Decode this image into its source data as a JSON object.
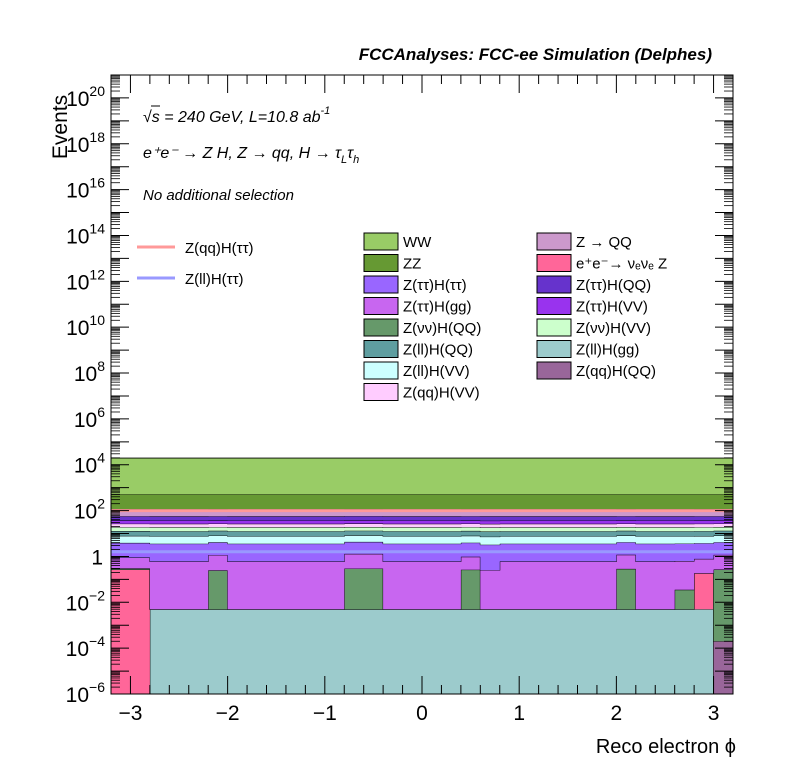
{
  "header": {
    "title": "FCCAnalyses: FCC-ee Simulation (Delphes)"
  },
  "annotations": {
    "energy_line": "√s = 240 GeV, L=10.8 ab",
    "energy_sup": "-1",
    "process_line": "e⁺e⁻ → Z H, Z → qq, H → τ_L τ_h",
    "process_main": "e⁺e⁻ → Z H, Z  → qq, H  → τ",
    "process_sub_L": "L",
    "process_tau2": "τ",
    "process_sub_h": "h",
    "selection": "No additional selection"
  },
  "chart_data": {
    "type": "area",
    "title": "FCCAnalyses: FCC-ee Simulation (Delphes)",
    "xlabel": "Reco electron ϕ",
    "ylabel": "Events",
    "xlim": [
      -3.2,
      3.2
    ],
    "ylim": [
      1e-06,
      1e+21
    ],
    "yscale": "log",
    "grid": false,
    "x_ticks": [
      "−3",
      "−2",
      "−1",
      "0",
      "1",
      "2",
      "3"
    ],
    "x_tick_values": [
      -3,
      -2,
      -1,
      0,
      1,
      2,
      3
    ],
    "y_ticks": [
      {
        "base": "10",
        "exp": "−6",
        "value": 1e-06
      },
      {
        "base": "10",
        "exp": "−4",
        "value": 0.0001
      },
      {
        "base": "10",
        "exp": "−2",
        "value": 0.01
      },
      {
        "base": "1",
        "exp": "",
        "value": 1
      },
      {
        "base": "10",
        "exp": "2",
        "value": 100.0
      },
      {
        "base": "10",
        "exp": "4",
        "value": 10000.0
      },
      {
        "base": "10",
        "exp": "6",
        "value": 1000000.0
      },
      {
        "base": "10",
        "exp": "8",
        "value": 100000000.0
      },
      {
        "base": "10",
        "exp": "10",
        "value": 10000000000.0
      },
      {
        "base": "10",
        "exp": "12",
        "value": 1000000000000.0
      },
      {
        "base": "10",
        "exp": "14",
        "value": 100000000000000.0
      },
      {
        "base": "10",
        "exp": "16",
        "value": 1e+16
      },
      {
        "base": "10",
        "exp": "18",
        "value": 1e+18
      },
      {
        "base": "10",
        "exp": "20",
        "value": 1e+20
      }
    ],
    "bin_edges": [
      -3.2,
      -2.8,
      -2.6,
      -2.2,
      -2.0,
      -0.8,
      -0.4,
      0.4,
      0.6,
      0.8,
      1.0,
      2.0,
      2.2,
      2.6,
      2.8,
      3.0,
      3.2
    ],
    "stack_legend_columns": 2,
    "stacked_series": [
      {
        "name": "Z(ll)H(gg)",
        "color": "#9ccbcc",
        "values": [
          0,
          0.005,
          0.005,
          0.005,
          0.005,
          0.005,
          0.005,
          0.005,
          0.005,
          0.005,
          0.005,
          0.005,
          0.005,
          0.005,
          0.005,
          0
        ]
      },
      {
        "name": "e⁺e⁻→ νₑνₑ Z",
        "color": "#ff6699",
        "values": [
          0.27,
          0,
          0,
          0,
          0,
          0,
          0,
          0,
          0,
          0,
          0,
          0,
          0,
          0,
          0.18,
          0
        ]
      },
      {
        "name": "Z(qq)H(QQ)",
        "color": "#99669a",
        "values": [
          0,
          0,
          0,
          0,
          0,
          0,
          0,
          0,
          0,
          0,
          0,
          0,
          0,
          0,
          0,
          0.0002
        ]
      },
      {
        "name": "Z(νν)H(QQ)",
        "color": "#66996a",
        "values": [
          0.03,
          0,
          0,
          0.24,
          0,
          0.29,
          0,
          0.26,
          0,
          0,
          0,
          0.28,
          0,
          0.03,
          0,
          0.27
        ]
      },
      {
        "name": "Z(ττ)H(gg)",
        "color": "#c866f0",
        "values": [
          0.6,
          0.6,
          0.6,
          0.9,
          0.6,
          1.0,
          0.6,
          0.7,
          0.25,
          0.6,
          0.6,
          0.9,
          0.6,
          0.6,
          0.6,
          0.9
        ]
      },
      {
        "name": "Z(ττ)H(ττ)",
        "color": "#9966ff",
        "values": [
          3,
          3,
          3,
          3,
          3,
          3,
          3,
          3,
          3,
          3,
          3,
          3,
          3,
          3,
          3,
          3
        ]
      },
      {
        "name": "Z(ll)H(VV)",
        "color": "#ccffff",
        "values": [
          4,
          4,
          4,
          4,
          4,
          4,
          4,
          4,
          4,
          4,
          4,
          4,
          4,
          4,
          4,
          4
        ]
      },
      {
        "name": "Z(ll)H(QQ)",
        "color": "#5f9ea0",
        "values": [
          5,
          5,
          5,
          5,
          5,
          5,
          5,
          5,
          5,
          5,
          5,
          5,
          5,
          5,
          5,
          5
        ]
      },
      {
        "name": "Z(νν)H(VV)",
        "color": "#ccffcc",
        "values": [
          6,
          6,
          6,
          6,
          6,
          6,
          6,
          6,
          6,
          6,
          6,
          6,
          6,
          6,
          6,
          6
        ]
      },
      {
        "name": "Z(qq)H(VV)",
        "color": "#ffccff",
        "values": [
          8,
          8,
          8,
          8,
          8,
          8,
          8,
          8,
          8,
          8,
          8,
          8,
          8,
          8,
          8,
          8
        ]
      },
      {
        "name": "Z(ττ)H(VV)",
        "color": "#9933ee",
        "values": [
          10,
          10,
          10,
          10,
          10,
          10,
          10,
          10,
          10,
          10,
          10,
          10,
          10,
          10,
          10,
          10
        ]
      },
      {
        "name": "Z(ττ)H(QQ)",
        "color": "#6633cc",
        "values": [
          20,
          20,
          20,
          20,
          20,
          20,
          20,
          20,
          20,
          20,
          20,
          20,
          20,
          20,
          20,
          20
        ]
      },
      {
        "name": "Z → QQ",
        "color": "#cc99cc",
        "values": [
          60,
          60,
          60,
          60,
          60,
          60,
          60,
          60,
          60,
          60,
          60,
          60,
          60,
          60,
          60,
          60
        ]
      },
      {
        "name": "ZZ",
        "color": "#669933",
        "values": [
          400,
          400,
          400,
          400,
          400,
          400,
          400,
          400,
          400,
          400,
          400,
          400,
          400,
          400,
          400,
          400
        ]
      },
      {
        "name": "WW",
        "color": "#99cc66",
        "values": [
          19000,
          19000,
          19000,
          19000,
          19000,
          19000,
          19000,
          19000,
          19000,
          19000,
          19000,
          19000,
          19000,
          19000,
          19000,
          19000
        ]
      }
    ],
    "legend_order": [
      "WW",
      "Z → QQ",
      "ZZ",
      "e⁺e⁻→ νₑνₑ Z",
      "Z(ττ)H(ττ)",
      "Z(ττ)H(QQ)",
      "Z(ττ)H(gg)",
      "Z(ττ)H(VV)",
      "Z(νν)H(QQ)",
      "Z(νν)H(VV)",
      "Z(ll)H(QQ)",
      "Z(ll)H(gg)",
      "Z(ll)H(VV)",
      "Z(qq)H(QQ)",
      "Z(qq)H(VV)"
    ],
    "line_series": [
      {
        "name": "Z(qq)H(ττ)",
        "color": "#ff9999",
        "values": [
          100,
          100,
          100,
          100,
          100,
          100,
          100,
          100,
          100,
          100,
          100,
          100,
          100,
          100,
          100,
          100
        ]
      },
      {
        "name": "Z(ll)H(ττ)",
        "color": "#9999ff",
        "values": [
          1.6,
          1.6,
          1.6,
          1.6,
          1.6,
          1.6,
          1.6,
          1.6,
          1.6,
          1.6,
          1.6,
          1.6,
          1.6,
          1.6,
          1.6,
          1.6
        ]
      }
    ]
  }
}
